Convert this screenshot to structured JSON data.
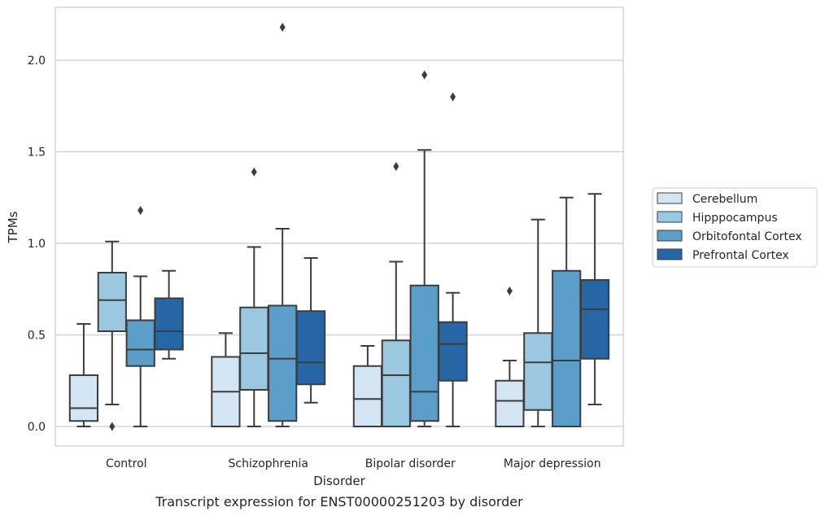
{
  "chart_data": {
    "type": "boxplot",
    "title": "",
    "caption": "Transcript expression for ENST00000251203 by disorder",
    "xlabel": "Disorder",
    "ylabel": "TPMs",
    "ylim": [
      -0.1,
      2.3
    ],
    "yticks": [
      0.0,
      0.5,
      1.0,
      1.5,
      2.0
    ],
    "ytick_labels": [
      "0.0",
      "0.5",
      "1.0",
      "1.5",
      "2.0"
    ],
    "grid": "horizontal",
    "legend_position": "right",
    "categories": [
      "Control",
      "Schizophrenia",
      "Bipolar disorder",
      "Major depression"
    ],
    "series": [
      {
        "name": "Cerebellum",
        "color": "#d3e4f3",
        "boxes": [
          {
            "whislo": 0.0,
            "q1": 0.03,
            "med": 0.1,
            "q3": 0.28,
            "whishi": 0.56,
            "fliers": []
          },
          {
            "whislo": 0.0,
            "q1": 0.0,
            "med": 0.19,
            "q3": 0.38,
            "whishi": 0.51,
            "fliers": []
          },
          {
            "whislo": 0.0,
            "q1": 0.0,
            "med": 0.15,
            "q3": 0.33,
            "whishi": 0.44,
            "fliers": []
          },
          {
            "whislo": 0.0,
            "q1": 0.0,
            "med": 0.14,
            "q3": 0.25,
            "whishi": 0.36,
            "fliers": [
              0.74
            ]
          }
        ]
      },
      {
        "name": "Hipppocampus",
        "color": "#9ac8e0",
        "boxes": [
          {
            "whislo": 0.12,
            "q1": 0.52,
            "med": 0.69,
            "q3": 0.84,
            "whishi": 1.01,
            "fliers": [
              0.0
            ]
          },
          {
            "whislo": 0.0,
            "q1": 0.2,
            "med": 0.4,
            "q3": 0.65,
            "whishi": 0.98,
            "fliers": [
              1.39
            ]
          },
          {
            "whislo": 0.0,
            "q1": 0.0,
            "med": 0.28,
            "q3": 0.47,
            "whishi": 0.9,
            "fliers": [
              1.42
            ]
          },
          {
            "whislo": 0.0,
            "q1": 0.09,
            "med": 0.35,
            "q3": 0.51,
            "whishi": 1.13,
            "fliers": []
          }
        ]
      },
      {
        "name": "Orbitofontal Cortex",
        "color": "#5a9ec9",
        "boxes": [
          {
            "whislo": 0.0,
            "q1": 0.33,
            "med": 0.42,
            "q3": 0.58,
            "whishi": 0.82,
            "fliers": [
              1.18
            ]
          },
          {
            "whislo": 0.0,
            "q1": 0.03,
            "med": 0.37,
            "q3": 0.66,
            "whishi": 1.08,
            "fliers": [
              2.18
            ]
          },
          {
            "whislo": 0.0,
            "q1": 0.03,
            "med": 0.19,
            "q3": 0.77,
            "whishi": 1.51,
            "fliers": [
              1.92
            ]
          },
          {
            "whislo": 0.0,
            "q1": 0.0,
            "med": 0.36,
            "q3": 0.85,
            "whishi": 1.25,
            "fliers": []
          }
        ]
      },
      {
        "name": "Prefrontal Cortex",
        "color": "#2666a6",
        "boxes": [
          {
            "whislo": 0.37,
            "q1": 0.42,
            "med": 0.52,
            "q3": 0.7,
            "whishi": 0.85,
            "fliers": []
          },
          {
            "whislo": 0.13,
            "q1": 0.23,
            "med": 0.35,
            "q3": 0.63,
            "whishi": 0.92,
            "fliers": []
          },
          {
            "whislo": 0.0,
            "q1": 0.25,
            "med": 0.45,
            "q3": 0.57,
            "whishi": 0.73,
            "fliers": [
              1.8
            ]
          },
          {
            "whislo": 0.12,
            "q1": 0.37,
            "med": 0.64,
            "q3": 0.8,
            "whishi": 1.27,
            "fliers": []
          }
        ]
      }
    ]
  }
}
